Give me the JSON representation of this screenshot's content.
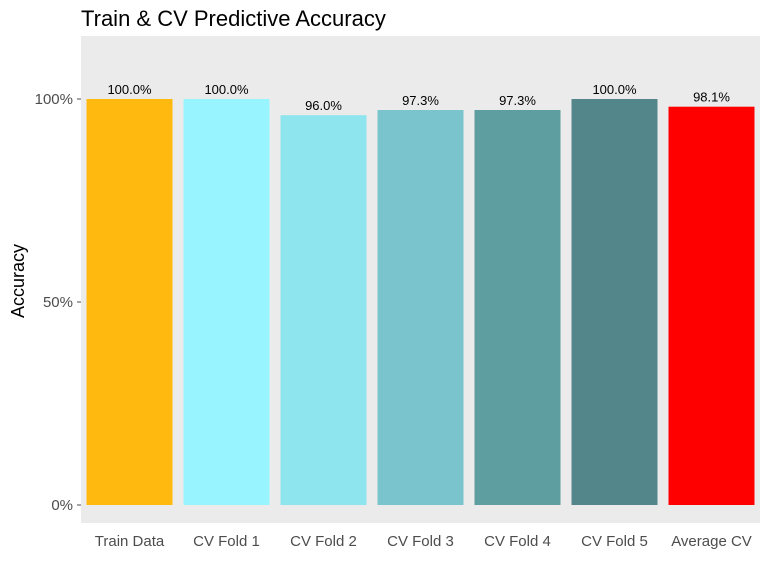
{
  "chart_data": {
    "type": "bar",
    "title": "Train & CV Predictive Accuracy",
    "xlabel": "",
    "ylabel": "Accuracy",
    "ylim": [
      0,
      1.12
    ],
    "yticks": [
      0,
      0.5,
      1.0
    ],
    "ytick_labels": [
      "0%",
      "50%",
      "100%"
    ],
    "categories": [
      "Train Data",
      "CV Fold 1",
      "CV Fold 2",
      "CV Fold 3",
      "CV Fold 4",
      "CV Fold 5",
      "Average CV"
    ],
    "values": [
      1.0,
      1.0,
      0.96,
      0.973,
      0.973,
      1.0,
      0.981
    ],
    "value_labels": [
      "100.0%",
      "100.0%",
      "96.0%",
      "97.3%",
      "97.3%",
      "100.0%",
      "98.1%"
    ],
    "colors": [
      "#FFB90F",
      "#98F5FF",
      "#8EE5EE",
      "#7AC5CD",
      "#5F9EA0",
      "#53868B",
      "#FF0000"
    ],
    "panel_background": "#EBEBEB",
    "grid": false,
    "legend": "none"
  }
}
